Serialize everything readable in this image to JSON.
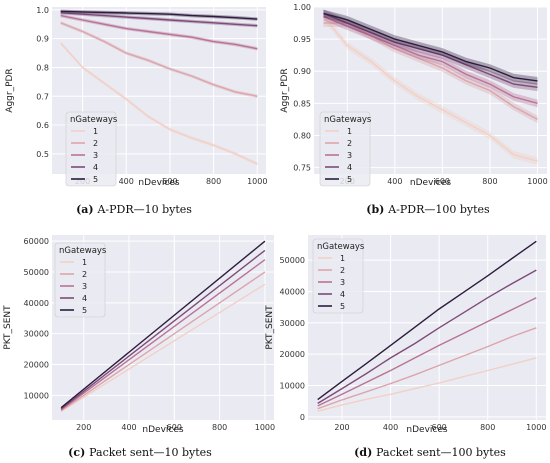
{
  "palette": [
    "#f1d0c7",
    "#dba5ab",
    "#b87395",
    "#7e4b78",
    "#2d1c3d"
  ],
  "chart_data": [
    {
      "type": "line",
      "caption_label": "(a)",
      "caption_text": "A-PDR—10 bytes",
      "xlabel": "nDevices",
      "ylabel": "Aggr_PDR",
      "xlim": [
        60,
        1040
      ],
      "ylim": [
        0.43,
        1.01
      ],
      "xticks": [
        200,
        400,
        600,
        800,
        1000
      ],
      "yticks": [
        0.5,
        0.6,
        0.7,
        0.8,
        0.9,
        1.0
      ],
      "ytick_labels": [
        "0.5",
        "0.6",
        "0.7",
        "0.8",
        "0.9",
        "1.0"
      ],
      "grid": true,
      "band": 0.006,
      "legend": {
        "title": "nGateways",
        "placement": "lower-left"
      },
      "x": [
        100,
        200,
        300,
        400,
        500,
        600,
        700,
        800,
        900,
        1000
      ],
      "series": [
        {
          "name": "1",
          "values": [
            0.885,
            0.8,
            0.745,
            0.69,
            0.63,
            0.585,
            0.555,
            0.53,
            0.5,
            0.465
          ]
        },
        {
          "name": "2",
          "values": [
            0.955,
            0.925,
            0.89,
            0.85,
            0.825,
            0.795,
            0.77,
            0.74,
            0.715,
            0.7
          ]
        },
        {
          "name": "3",
          "values": [
            0.98,
            0.965,
            0.95,
            0.935,
            0.925,
            0.915,
            0.905,
            0.89,
            0.88,
            0.865
          ]
        },
        {
          "name": "4",
          "values": [
            0.99,
            0.985,
            0.98,
            0.975,
            0.97,
            0.965,
            0.96,
            0.955,
            0.95,
            0.945
          ]
        },
        {
          "name": "5",
          "values": [
            0.995,
            0.993,
            0.991,
            0.989,
            0.987,
            0.985,
            0.98,
            0.977,
            0.973,
            0.968
          ]
        }
      ]
    },
    {
      "type": "line",
      "caption_label": "(b)",
      "caption_text": "A-PDR—100 bytes",
      "xlabel": "nDevices",
      "ylabel": "Aggr_PDR",
      "xlim": [
        60,
        1040
      ],
      "ylim": [
        0.74,
        1.0
      ],
      "xticks": [
        200,
        400,
        600,
        800,
        1000
      ],
      "yticks": [
        0.75,
        0.8,
        0.85,
        0.9,
        0.95,
        1.0
      ],
      "ytick_labels": [
        "0.75",
        "0.80",
        "0.85",
        "0.90",
        "0.95",
        "1.00"
      ],
      "grid": true,
      "band": 0.006,
      "legend": {
        "title": "nGateways",
        "placement": "lower-left"
      },
      "x": [
        100,
        200,
        300,
        400,
        500,
        600,
        700,
        800,
        900,
        1000
      ],
      "series": [
        {
          "name": "1",
          "values": [
            0.985,
            0.94,
            0.915,
            0.885,
            0.86,
            0.84,
            0.82,
            0.8,
            0.77,
            0.76
          ]
        },
        {
          "name": "2",
          "values": [
            0.975,
            0.975,
            0.955,
            0.935,
            0.92,
            0.905,
            0.885,
            0.87,
            0.845,
            0.825
          ]
        },
        {
          "name": "3",
          "values": [
            0.985,
            0.97,
            0.955,
            0.94,
            0.925,
            0.915,
            0.895,
            0.88,
            0.86,
            0.85
          ]
        },
        {
          "name": "4",
          "values": [
            0.99,
            0.975,
            0.96,
            0.945,
            0.935,
            0.925,
            0.91,
            0.895,
            0.88,
            0.875
          ]
        },
        {
          "name": "5",
          "values": [
            0.99,
            0.98,
            0.965,
            0.95,
            0.94,
            0.93,
            0.915,
            0.905,
            0.89,
            0.885
          ]
        }
      ]
    },
    {
      "type": "line",
      "caption_label": "(c)",
      "caption_text": "Packet sent—10 bytes",
      "xlabel": "nDevices",
      "ylabel": "PKT_SENT",
      "xlim": [
        60,
        1040
      ],
      "ylim": [
        2000,
        62000
      ],
      "xticks": [
        200,
        400,
        600,
        800,
        1000
      ],
      "yticks": [
        10000,
        20000,
        30000,
        40000,
        50000,
        60000
      ],
      "ytick_labels": [
        "10000",
        "20000",
        "30000",
        "40000",
        "50000",
        "60000"
      ],
      "grid": true,
      "band": 0,
      "legend": {
        "title": "nGateways",
        "placement": "upper-left"
      },
      "x": [
        100,
        1000
      ],
      "series": [
        {
          "name": "1",
          "values": [
            4800,
            46000
          ]
        },
        {
          "name": "2",
          "values": [
            5000,
            50000
          ]
        },
        {
          "name": "3",
          "values": [
            5300,
            54000
          ]
        },
        {
          "name": "4",
          "values": [
            5600,
            57000
          ]
        },
        {
          "name": "5",
          "values": [
            6000,
            60000
          ]
        }
      ]
    },
    {
      "type": "line",
      "caption_label": "(d)",
      "caption_text": "Packet sent—100 bytes",
      "xlabel": "nDevices",
      "ylabel": "PKT_SENT",
      "xlim": [
        60,
        1040
      ],
      "ylim": [
        -1000,
        58000
      ],
      "xticks": [
        200,
        400,
        600,
        800,
        1000
      ],
      "yticks": [
        0,
        10000,
        20000,
        30000,
        40000,
        50000
      ],
      "ytick_labels": [
        "0",
        "10000",
        "20000",
        "30000",
        "40000",
        "50000"
      ],
      "grid": true,
      "band": 0,
      "legend": {
        "title": "nGateways",
        "placement": "upper-left"
      },
      "x": [
        100,
        200,
        300,
        400,
        500,
        600,
        700,
        800,
        900,
        1000
      ],
      "series": [
        {
          "name": "1",
          "values": [
            1800,
            3800,
            5600,
            7200,
            9000,
            10800,
            12800,
            14800,
            16800,
            18800
          ]
        },
        {
          "name": "2",
          "values": [
            2600,
            5400,
            8000,
            10600,
            13400,
            16400,
            19400,
            22400,
            25600,
            28400
          ]
        },
        {
          "name": "3",
          "values": [
            3500,
            7200,
            11000,
            14800,
            18800,
            22800,
            26600,
            30400,
            34200,
            38000
          ]
        },
        {
          "name": "4",
          "values": [
            4300,
            9000,
            13800,
            18800,
            23400,
            28400,
            33200,
            38000,
            42500,
            46800
          ]
        },
        {
          "name": "5",
          "values": [
            5500,
            11300,
            17000,
            22800,
            28600,
            34400,
            39700,
            45000,
            50500,
            56000
          ]
        }
      ]
    }
  ]
}
